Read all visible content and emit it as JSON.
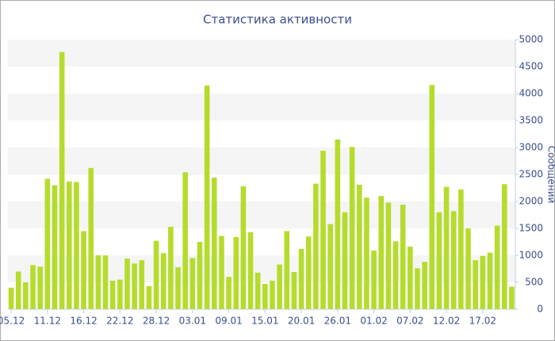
{
  "chart_data": {
    "type": "bar",
    "title": "Статистика активности",
    "y_axis_label": "Сообщений",
    "categories": [
      "05.12",
      null,
      null,
      null,
      null,
      "11.12",
      null,
      null,
      null,
      null,
      "16.12",
      null,
      null,
      null,
      null,
      "22.12",
      null,
      null,
      null,
      null,
      "28.12",
      null,
      null,
      null,
      null,
      "03.01",
      null,
      null,
      null,
      null,
      "09.01",
      null,
      null,
      null,
      null,
      "15.01",
      null,
      null,
      null,
      null,
      "20.01",
      null,
      null,
      null,
      null,
      "26.01",
      null,
      null,
      null,
      null,
      "01.02",
      null,
      null,
      null,
      null,
      "07.02",
      null,
      null,
      null,
      null,
      "12.02",
      null,
      null,
      null,
      null,
      "17.02",
      null,
      null,
      null,
      null
    ],
    "values": [
      400,
      700,
      500,
      820,
      790,
      2420,
      2300,
      4770,
      2370,
      2360,
      1450,
      2620,
      1000,
      1000,
      530,
      550,
      940,
      850,
      910,
      430,
      1270,
      1040,
      1530,
      780,
      2540,
      950,
      1250,
      4150,
      2440,
      1360,
      600,
      1340,
      2280,
      1430,
      680,
      470,
      530,
      830,
      1450,
      690,
      1120,
      1350,
      2330,
      2940,
      1580,
      3150,
      1800,
      3010,
      2310,
      2070,
      1090,
      2100,
      1980,
      1260,
      1940,
      1160,
      760,
      880,
      4160,
      1800,
      2270,
      1820,
      2220,
      1500,
      910,
      990,
      1050,
      1550,
      2320,
      420
    ],
    "color": "#b5dc2c",
    "ylim": [
      0,
      5000
    ],
    "yticks": [
      0,
      500,
      1000,
      1500,
      2000,
      2500,
      3000,
      3500,
      4000,
      4500,
      5000
    ],
    "grid": true
  }
}
